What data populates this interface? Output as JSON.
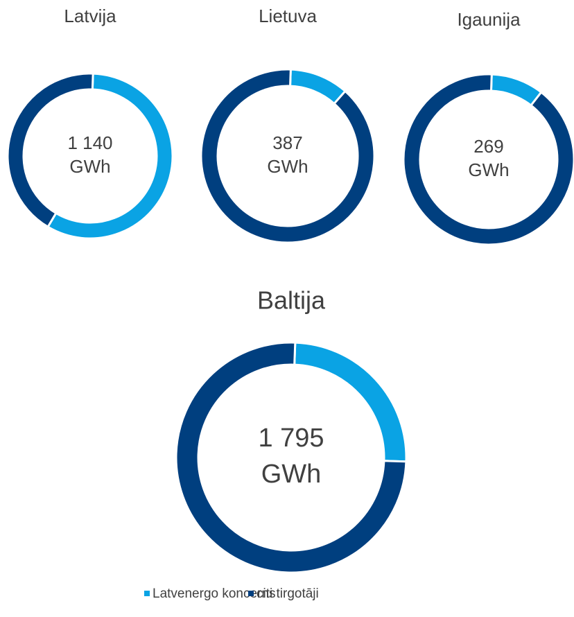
{
  "chart_data": [
    {
      "type": "pie",
      "title": "Latvija",
      "center_label": [
        "1 140",
        "GWh"
      ],
      "values": [
        58,
        42
      ]
    },
    {
      "type": "pie",
      "title": "Lietuva",
      "center_label": [
        "387",
        "GWh"
      ],
      "values": [
        11,
        89
      ]
    },
    {
      "type": "pie",
      "title": "Igaunija",
      "center_label": [
        "269",
        "GWh"
      ],
      "values": [
        10,
        90
      ]
    },
    {
      "type": "pie",
      "title": "Baltija",
      "center_label": [
        "1 795",
        "GWh"
      ],
      "values": [
        25,
        75
      ]
    }
  ],
  "legend": [
    {
      "name": "Latvenergo koncerns",
      "color": "#0aa3e4"
    },
    {
      "name": "citi tirgotāji",
      "color": "#003f7f"
    }
  ]
}
